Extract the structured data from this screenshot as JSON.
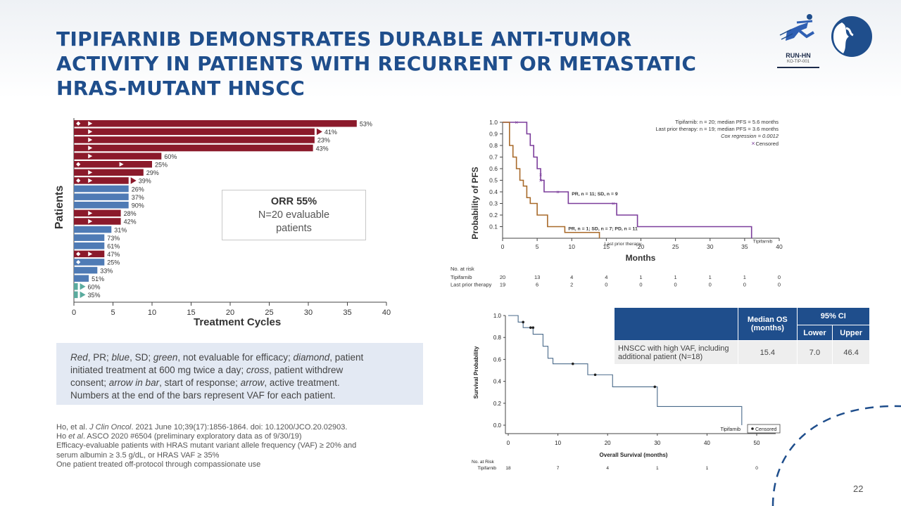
{
  "title": "TIPIFARNIB DEMONSTRATES DURABLE ANTI-TUMOR ACTIVITY IN PATIENTS WITH RECURRENT OR METASTATIC HRAS-MUTANT HNSCC",
  "logo": {
    "name": "RUN-HN",
    "sub": "KO-TIP-001"
  },
  "page_number": "22",
  "orr_box": {
    "title": "ORR 55%",
    "line1": "N=20 evaluable",
    "line2": "patients"
  },
  "legend": {
    "l1a": "Red",
    "l1b": ", PR; ",
    "l1c": "blue",
    "l1d": ", SD; ",
    "l1e": "green",
    "l1f": ", not evaluable for efficacy; ",
    "l1g": "diamond",
    "l1h": ", patient",
    "l2": "initiated treatment at 600 mg twice a day; ",
    "l2b": "cross",
    "l2c": ", patient withdrew",
    "l3a": "consent; ",
    "l3b": "arrow in bar",
    "l3c": ", start of response; ",
    "l3d": "arrow",
    "l3e": ", active treatment.",
    "l4": "Numbers at the end of the bars represent VAF for each patient."
  },
  "references": [
    {
      "pre": "Ho, et al. ",
      "em": "J Clin Oncol",
      "post": ". 2021 June 10;39(17):1856-1864. doi: 10.1200/JCO.20.02903."
    },
    {
      "pre": "Ho ",
      "em": "et al",
      "post": ". ASCO 2020 #6504 (preliminary exploratory data as of 9/30/19)"
    },
    {
      "pre": "Efficacy-evaluable patients with HRAS mutant variant allele frequency (VAF) ≥ 20% and",
      "em": "",
      "post": ""
    },
    {
      "pre": "serum albumin ≥ 3.5 g/dL, or HRAS VAF ≥ 35%",
      "em": "",
      "post": ""
    },
    {
      "pre": "One patient treated off-protocol through compassionate use",
      "em": "",
      "post": ""
    }
  ],
  "colors": {
    "pr": "#8b1a2b",
    "sd": "#4f7bb5",
    "ne": "#5aab9e",
    "tipi": "#7b3d9b",
    "prior": "#a86a2a",
    "os": "#4a6a8a",
    "navy": "#1f4e8c"
  },
  "chart_data": [
    {
      "type": "bar",
      "orientation": "horizontal",
      "title": "",
      "xlabel": "Treatment Cycles",
      "ylabel": "Patients",
      "xlim": [
        0,
        40
      ],
      "xticks": [
        "0",
        "5",
        "10",
        "15",
        "20",
        "25",
        "30",
        "35",
        "40"
      ],
      "bars": [
        {
          "value": 36.2,
          "label": "53%",
          "cat": "pr",
          "diamond": true,
          "arrowIn": 2,
          "arrowEnd": false
        },
        {
          "value": 30.8,
          "label": "41%",
          "cat": "pr",
          "diamond": false,
          "arrowIn": 2,
          "arrowEnd": true
        },
        {
          "value": 30.8,
          "label": "23%",
          "cat": "pr",
          "diamond": false,
          "arrowIn": 2,
          "arrowEnd": false
        },
        {
          "value": 30.6,
          "label": "43%",
          "cat": "pr",
          "diamond": false,
          "arrowIn": 2,
          "arrowEnd": false
        },
        {
          "value": 11.2,
          "label": "60%",
          "cat": "pr",
          "diamond": false,
          "arrowIn": 2,
          "arrowEnd": false
        },
        {
          "value": 10.0,
          "label": "25%",
          "cat": "pr",
          "diamond": true,
          "arrowIn": 6,
          "arrowEnd": false
        },
        {
          "value": 8.9,
          "label": "29%",
          "cat": "pr",
          "diamond": false,
          "arrowIn": 2,
          "arrowEnd": false
        },
        {
          "value": 7.0,
          "label": "39%",
          "cat": "pr",
          "diamond": true,
          "arrowIn": 2,
          "arrowEnd": true
        },
        {
          "value": 7.0,
          "label": "26%",
          "cat": "sd",
          "diamond": false,
          "arrowIn": null,
          "arrowEnd": false
        },
        {
          "value": 7.0,
          "label": "37%",
          "cat": "sd",
          "diamond": false,
          "arrowIn": null,
          "arrowEnd": false
        },
        {
          "value": 7.0,
          "label": "90%",
          "cat": "sd",
          "diamond": false,
          "arrowIn": null,
          "arrowEnd": false
        },
        {
          "value": 6.0,
          "label": "28%",
          "cat": "pr",
          "diamond": false,
          "arrowIn": 2,
          "arrowEnd": false
        },
        {
          "value": 6.0,
          "label": "42%",
          "cat": "pr",
          "diamond": false,
          "arrowIn": 2,
          "arrowEnd": false
        },
        {
          "value": 4.8,
          "label": "31%",
          "cat": "sd",
          "diamond": false,
          "arrowIn": null,
          "arrowEnd": false
        },
        {
          "value": 3.9,
          "label": "73%",
          "cat": "sd",
          "diamond": false,
          "arrowIn": null,
          "arrowEnd": false
        },
        {
          "value": 3.9,
          "label": "61%",
          "cat": "sd",
          "diamond": false,
          "arrowIn": null,
          "arrowEnd": false
        },
        {
          "value": 3.9,
          "label": "47%",
          "cat": "pr",
          "diamond": true,
          "arrowIn": 2,
          "arrowEnd": false
        },
        {
          "value": 3.9,
          "label": "25%",
          "cat": "sd",
          "diamond": true,
          "arrowIn": null,
          "arrowEnd": false
        },
        {
          "value": 3.0,
          "label": "33%",
          "cat": "sd",
          "diamond": false,
          "arrowIn": null,
          "arrowEnd": false
        },
        {
          "value": 1.9,
          "label": "51%",
          "cat": "sd",
          "diamond": false,
          "arrowIn": null,
          "arrowEnd": false
        },
        {
          "value": 0.5,
          "label": "60%",
          "cat": "ne",
          "diamond": false,
          "arrowIn": null,
          "arrowEnd": true
        },
        {
          "value": 0.5,
          "label": "35%",
          "cat": "ne",
          "diamond": false,
          "arrowIn": null,
          "arrowEnd": true
        }
      ]
    },
    {
      "type": "line",
      "subtype": "kaplan-meier",
      "xlabel": "Months",
      "ylabel": "Probability of PFS",
      "xlim": [
        0,
        40
      ],
      "ylim": [
        0,
        1.0
      ],
      "xticks": [
        "0",
        "5",
        "10",
        "15",
        "20",
        "25",
        "30",
        "35",
        "40"
      ],
      "yticks": [
        "0.1",
        "0.2",
        "0.3",
        "0.4",
        "0.5",
        "0.6",
        "0.7",
        "0.8",
        "0.9",
        "1.0"
      ],
      "legend": [
        "Tipifarnib: n = 20; median PFS = 5.6 months",
        "Last prior therapy: n = 19; median PFS = 3.6 months",
        "Cox regression = 0.0012",
        "Censored"
      ],
      "series": [
        {
          "name": "Tipifarnib",
          "color": "tipi",
          "x": [
            0,
            3.5,
            3.5,
            4.0,
            4.0,
            4.5,
            4.5,
            5.0,
            5.0,
            5.5,
            5.5,
            6.0,
            6.0,
            9.5,
            9.5,
            16.5,
            16.5,
            19.5,
            19.5,
            36.0,
            36.0
          ],
          "y": [
            1.0,
            1.0,
            0.9,
            0.9,
            0.8,
            0.8,
            0.7,
            0.7,
            0.6,
            0.6,
            0.5,
            0.5,
            0.4,
            0.4,
            0.3,
            0.3,
            0.2,
            0.2,
            0.1,
            0.1,
            0.0
          ]
        },
        {
          "name": "Last prior therapy",
          "color": "prior",
          "x": [
            0,
            1.0,
            1.0,
            1.5,
            1.5,
            2.0,
            2.0,
            2.5,
            2.5,
            3.0,
            3.0,
            3.5,
            3.5,
            4.0,
            4.0,
            5.0,
            5.0,
            6.5,
            6.5,
            9.0,
            9.0,
            14.0,
            14.0
          ],
          "y": [
            1.0,
            1.0,
            0.8,
            0.8,
            0.7,
            0.7,
            0.6,
            0.6,
            0.5,
            0.5,
            0.45,
            0.45,
            0.35,
            0.35,
            0.3,
            0.3,
            0.2,
            0.2,
            0.1,
            0.1,
            0.05,
            0.05,
            0.0
          ]
        }
      ],
      "censored_tipifarnib": [
        [
          2.0,
          1.0
        ],
        [
          5.5,
          0.55
        ],
        [
          5.5,
          0.5
        ],
        [
          8.0,
          0.4
        ],
        [
          16.0,
          0.3
        ]
      ],
      "annotations": [
        {
          "text": "PR, n = 11; SD, n = 9",
          "x": 10,
          "y": 0.37
        },
        {
          "text": "PR, n = 1; SD, n = 7; PD, n = 11",
          "x": 9.5,
          "y": 0.07
        },
        {
          "text": "Last prior therapy",
          "x": 14.7,
          "y": -0.06
        },
        {
          "text": "Tipifarnib",
          "x": 36.2,
          "y": -0.04
        }
      ],
      "risk_table": {
        "header": "No. at risk",
        "rows": [
          {
            "label": "Tipifarnib",
            "values": [
              "20",
              "13",
              "4",
              "4",
              "1",
              "1",
              "1",
              "1",
              "0"
            ]
          },
          {
            "label": "Last prior therapy",
            "values": [
              "19",
              "6",
              "2",
              "0",
              "0",
              "0",
              "0",
              "0",
              "0"
            ]
          }
        ]
      }
    },
    {
      "type": "line",
      "subtype": "kaplan-meier",
      "xlabel": "Overall Survival (months)",
      "ylabel": "Survival Probability",
      "xlim": [
        0,
        50
      ],
      "ylim": [
        0,
        1.0
      ],
      "xticks": [
        "0",
        "10",
        "20",
        "30",
        "40",
        "50"
      ],
      "yticks": [
        "0.0",
        "0.2",
        "0.4",
        "0.6",
        "0.8",
        "1.0"
      ],
      "legend": [
        "Tipifarnib",
        "Censored"
      ],
      "series": [
        {
          "name": "Tipifarnib",
          "color": "os",
          "x": [
            0,
            2,
            2,
            3,
            3,
            5,
            5,
            7,
            7,
            8,
            8,
            9,
            9,
            13,
            13,
            16,
            16,
            17,
            17,
            21,
            21,
            30,
            30,
            47,
            47
          ],
          "y": [
            1.0,
            1.0,
            0.94,
            0.94,
            0.89,
            0.89,
            0.83,
            0.83,
            0.72,
            0.72,
            0.61,
            0.61,
            0.56,
            0.56,
            0.56,
            0.56,
            0.46,
            0.46,
            0.46,
            0.46,
            0.35,
            0.35,
            0.17,
            0.17,
            0.0
          ]
        }
      ],
      "censored": [
        [
          3.0,
          0.94
        ],
        [
          4.5,
          0.89
        ],
        [
          5.0,
          0.89
        ],
        [
          13.0,
          0.56
        ],
        [
          17.5,
          0.46
        ],
        [
          29.5,
          0.35
        ]
      ],
      "risk_table": {
        "header": "No. at Risk",
        "rows": [
          {
            "label": "Tipifarnib",
            "values": [
              "18",
              "7",
              "4",
              "1",
              "1",
              "0"
            ]
          }
        ]
      }
    }
  ],
  "os_table": {
    "h_median": "Median OS",
    "h_median2": "(months)",
    "h_ci": "95% CI",
    "h_lower": "Lower",
    "h_upper": "Upper",
    "row_label1": "HNSCC with high VAF, including",
    "row_label2": "additional patient (N=18)",
    "median": "15.4",
    "lower": "7.0",
    "upper": "46.4"
  }
}
